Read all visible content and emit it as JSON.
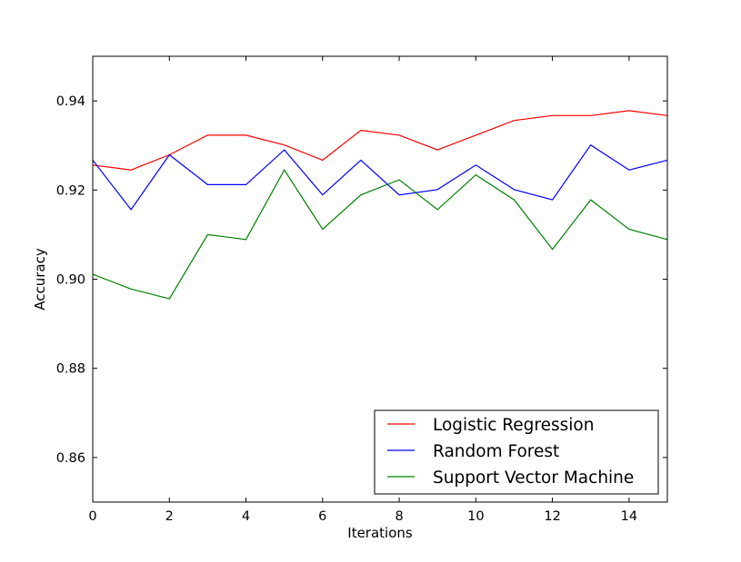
{
  "chart_data": {
    "type": "line",
    "title": "",
    "xlabel": "Iterations",
    "ylabel": "Accuracy",
    "xlim": [
      0,
      15
    ],
    "ylim": [
      0.85,
      0.95
    ],
    "x_ticks": [
      0,
      2,
      4,
      6,
      8,
      10,
      12,
      14
    ],
    "y_ticks": [
      0.86,
      0.88,
      0.9,
      0.92,
      0.94
    ],
    "x_tick_labels": [
      "0",
      "2",
      "4",
      "6",
      "8",
      "10",
      "12",
      "14"
    ],
    "y_tick_labels": [
      "0.86",
      "0.88",
      "0.90",
      "0.92",
      "0.94"
    ],
    "grid": false,
    "legend_position": "lower-right",
    "x": [
      0,
      1,
      2,
      3,
      4,
      5,
      6,
      7,
      8,
      9,
      10,
      11,
      12,
      13,
      14,
      15
    ],
    "series": [
      {
        "name": "Logistic Regression",
        "color": "#ff0000",
        "values": [
          0.9256,
          0.9245,
          0.9279,
          0.9323,
          0.9323,
          0.9301,
          0.9267,
          0.9334,
          0.9323,
          0.929,
          0.9323,
          0.9356,
          0.9367,
          0.9367,
          0.9378,
          0.9367
        ]
      },
      {
        "name": "Random Forest",
        "color": "#0000ff",
        "values": [
          0.9267,
          0.9156,
          0.9279,
          0.9212,
          0.9212,
          0.929,
          0.9189,
          0.9267,
          0.9189,
          0.9201,
          0.9256,
          0.9201,
          0.9178,
          0.9301,
          0.9245,
          0.9267
        ]
      },
      {
        "name": "Support Vector Machine",
        "color": "#008000",
        "values": [
          0.9011,
          0.8978,
          0.8956,
          0.91,
          0.9089,
          0.9245,
          0.9112,
          0.9189,
          0.9223,
          0.9156,
          0.9234,
          0.9178,
          0.9067,
          0.9178,
          0.9112,
          0.9089
        ]
      }
    ]
  }
}
